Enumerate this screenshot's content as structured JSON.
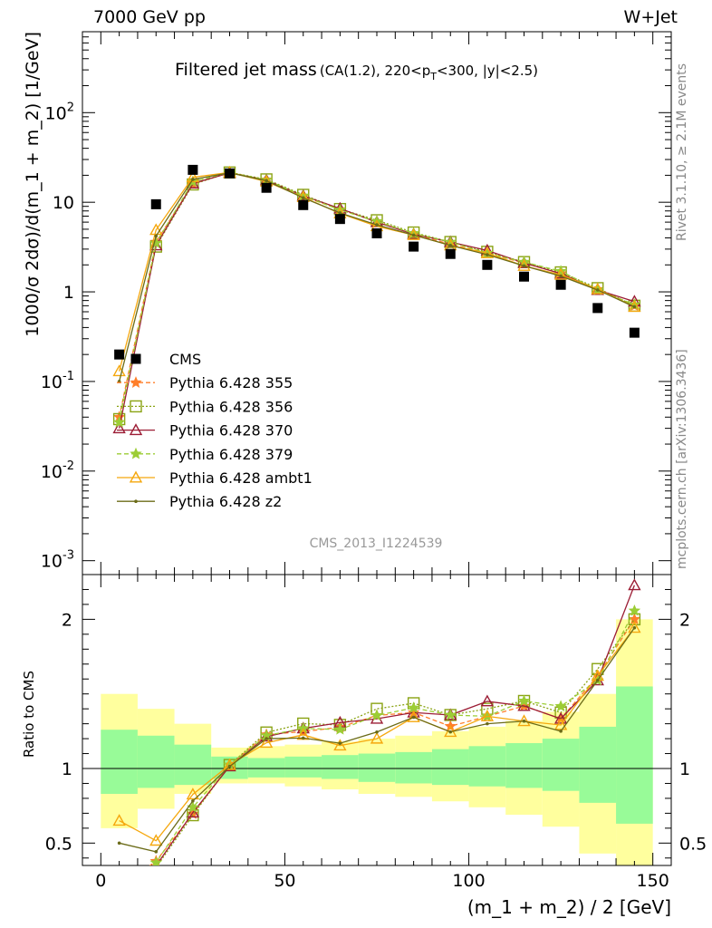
{
  "header": {
    "left": "7000 GeV pp",
    "right": "W+Jet"
  },
  "side_labels": {
    "rivet": "Rivet 3.1.10, ≥ 2.1M events",
    "source": "mcplots.cern.ch [arXiv:1306.3436]"
  },
  "chart_data": {
    "type": "line",
    "title_main": "Filtered jet mass",
    "title_sub": "(CA(1.2), 220<p",
    "title_sub_index": "T",
    "title_sub_tail": "<300, |y|<2.5)",
    "watermark": "CMS_2013_I1224539",
    "xlabel": "(m_1 + m_2) / 2 [GeV]",
    "ylabel": "1000/σ 2dσ)/d(m_1 + m_2) [1/GeV]",
    "ratio_ylabel": "Ratio to CMS",
    "xlim": [
      -5,
      155
    ],
    "ylim": [
      0.0007,
      800
    ],
    "ratio_ylim": [
      0.35,
      2.3
    ],
    "yscale": "log",
    "x_ticks": [
      "0",
      "50",
      "100",
      "150"
    ],
    "y_ticks": [
      {
        "base": "10",
        "exp": "-3"
      },
      {
        "base": "10",
        "exp": "-2"
      },
      {
        "base": "10",
        "exp": "-1"
      },
      {
        "base": "1",
        "exp": ""
      },
      {
        "base": "10",
        "exp": ""
      },
      {
        "base": "10",
        "exp": "2"
      }
    ],
    "ratio_ticks": [
      "0.5",
      "1",
      "2"
    ],
    "legend_position": "left",
    "x": [
      5,
      15,
      25,
      35,
      45,
      55,
      65,
      75,
      85,
      95,
      105,
      115,
      125,
      135,
      145
    ],
    "data": {
      "name": "CMS",
      "color": "#000000",
      "values": [
        0.2,
        9.5,
        23,
        21,
        14.5,
        9.3,
        6.5,
        4.5,
        3.2,
        2.65,
        2.0,
        1.48,
        1.2,
        0.66,
        0.35
      ]
    },
    "bands": {
      "inner": [
        [
          0.83,
          1.26
        ],
        [
          0.87,
          1.22
        ],
        [
          0.89,
          1.16
        ],
        [
          0.93,
          1.08
        ],
        [
          0.94,
          1.07
        ],
        [
          0.94,
          1.08
        ],
        [
          0.93,
          1.09
        ],
        [
          0.91,
          1.1
        ],
        [
          0.9,
          1.11
        ],
        [
          0.89,
          1.13
        ],
        [
          0.88,
          1.15
        ],
        [
          0.87,
          1.17
        ],
        [
          0.85,
          1.2
        ],
        [
          0.77,
          1.28
        ],
        [
          0.63,
          1.55
        ]
      ],
      "outer": [
        [
          0.6,
          1.5
        ],
        [
          0.73,
          1.4
        ],
        [
          0.83,
          1.3
        ],
        [
          0.9,
          1.14
        ],
        [
          0.9,
          1.15
        ],
        [
          0.88,
          1.16
        ],
        [
          0.86,
          1.18
        ],
        [
          0.83,
          1.2
        ],
        [
          0.81,
          1.22
        ],
        [
          0.78,
          1.25
        ],
        [
          0.74,
          1.28
        ],
        [
          0.69,
          1.32
        ],
        [
          0.61,
          1.38
        ],
        [
          0.43,
          1.5
        ],
        [
          0.3,
          2.0
        ]
      ],
      "inner_color": "#98fb98",
      "outer_color": "#ffff9e"
    },
    "series": [
      {
        "name": "Pythia 6.428 355",
        "color": "#ff7f2a",
        "dash": "5,3",
        "marker": "star",
        "values": [
          0.04,
          3.6,
          16,
          21.5,
          17.8,
          11.6,
          8.3,
          6.1,
          4.4,
          3.4,
          2.7,
          2.1,
          1.6,
          1.07,
          0.7
        ]
      },
      {
        "name": "Pythia 6.428 356",
        "color": "#8aa314",
        "dash": "2,2",
        "marker": "square",
        "values": [
          0.038,
          3.2,
          15.8,
          21.5,
          18,
          12.1,
          8.4,
          6.3,
          4.6,
          3.6,
          2.8,
          2.15,
          1.65,
          1.1,
          0.7
        ]
      },
      {
        "name": "Pythia 6.428 370",
        "color": "#9c1d35",
        "dash": "",
        "marker": "triangle",
        "values": [
          0.03,
          3.3,
          16.2,
          21.3,
          17.6,
          11.8,
          8.5,
          6.0,
          4.4,
          3.6,
          2.9,
          2.1,
          1.6,
          1.05,
          0.78
        ]
      },
      {
        "name": "Pythia 6.428 379",
        "color": "#9ccd35",
        "dash": "5,3",
        "marker": "star",
        "values": [
          0.035,
          3.5,
          17,
          21.5,
          17.7,
          11.8,
          8.2,
          6.1,
          4.5,
          3.6,
          2.7,
          2.15,
          1.7,
          1.05,
          0.72
        ]
      },
      {
        "name": "Pythia 6.428 ambt1",
        "color": "#f5a70d",
        "dash": "",
        "marker": "triangle",
        "values": [
          0.13,
          4.9,
          19,
          21.5,
          17,
          11.4,
          7.5,
          5.4,
          4.3,
          3.3,
          2.7,
          1.95,
          1.55,
          1.07,
          0.68
        ]
      },
      {
        "name": "Pythia 6.428 z2",
        "color": "#6b6b18",
        "dash": "",
        "marker": "dot",
        "values": [
          0.1,
          4.2,
          18,
          21.3,
          17.4,
          11.2,
          7.6,
          5.6,
          4.3,
          3.3,
          2.6,
          1.95,
          1.5,
          1.05,
          0.68
        ]
      }
    ]
  }
}
